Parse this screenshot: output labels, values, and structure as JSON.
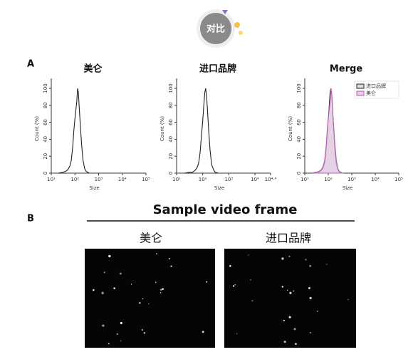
{
  "header": {
    "badge": "对比"
  },
  "panel_labels": [
    "A",
    "B"
  ],
  "video": {
    "title": "Sample video frame",
    "left": "美仑",
    "right": "进口品牌"
  },
  "chart_data": [
    {
      "type": "line",
      "title": "美仑",
      "xlabel": "Size",
      "ylabel": "Count (%)",
      "log_x": true,
      "x": [
        20,
        30,
        40,
        50,
        60,
        70,
        80,
        90,
        100,
        110,
        120,
        130,
        140,
        150,
        170,
        190,
        220,
        260,
        300,
        400
      ],
      "series": [
        {
          "name": "美仑",
          "color": "#222222",
          "values": [
            0,
            1,
            2,
            4,
            8,
            15,
            30,
            50,
            65,
            75,
            85,
            100,
            95,
            80,
            55,
            35,
            15,
            5,
            2,
            0
          ]
        }
      ],
      "xlim": [
        10,
        100000
      ],
      "ylim": [
        0,
        105
      ],
      "xticks": [
        {
          "value": 10,
          "label": "10¹"
        },
        {
          "value": 100,
          "label": "10²"
        },
        {
          "value": 1000,
          "label": "10³"
        },
        {
          "value": 10000,
          "label": "10⁴"
        },
        {
          "value": 100000,
          "label": "10⁵"
        }
      ],
      "yticks": [
        0,
        20,
        40,
        60,
        80,
        100
      ]
    },
    {
      "type": "line",
      "title": "进口品牌",
      "xlabel": "Size",
      "ylabel": "Count (%)",
      "log_x": true,
      "x": [
        20,
        30,
        40,
        50,
        60,
        70,
        80,
        90,
        100,
        110,
        120,
        130,
        140,
        150,
        170,
        190,
        220,
        260,
        300,
        400
      ],
      "series": [
        {
          "name": "进口品牌",
          "color": "#222222",
          "values": [
            0,
            1,
            1,
            3,
            6,
            12,
            25,
            45,
            62,
            80,
            95,
            100,
            92,
            78,
            50,
            28,
            10,
            4,
            1,
            0
          ]
        }
      ],
      "xlim": [
        10,
        39810.7
      ],
      "ylim": [
        0,
        105
      ],
      "xticks": [
        {
          "value": 10,
          "label": "10¹"
        },
        {
          "value": 100,
          "label": "10²"
        },
        {
          "value": 1000,
          "label": "10³"
        },
        {
          "value": 10000,
          "label": "10⁴"
        },
        {
          "value": 39810.7,
          "label": "10⁴·⁶"
        }
      ],
      "yticks": [
        0,
        20,
        40,
        60,
        80,
        100
      ]
    },
    {
      "type": "line",
      "title": "Merge",
      "xlabel": "Size",
      "ylabel": "Count (%)",
      "log_x": true,
      "legend": "upper right",
      "x": [
        20,
        30,
        40,
        50,
        60,
        70,
        80,
        90,
        100,
        110,
        120,
        130,
        140,
        150,
        170,
        190,
        220,
        260,
        300,
        400
      ],
      "series": [
        {
          "name": "进口品牌",
          "color": "#222222",
          "fill": "#d9d9d9",
          "values": [
            0,
            1,
            1,
            3,
            6,
            12,
            25,
            45,
            62,
            80,
            95,
            100,
            92,
            78,
            50,
            28,
            10,
            4,
            1,
            0
          ]
        },
        {
          "name": "美仑",
          "color": "#b060b0",
          "fill": "#e6cde6",
          "values": [
            0,
            1,
            2,
            4,
            8,
            15,
            30,
            50,
            65,
            75,
            85,
            100,
            95,
            80,
            55,
            35,
            15,
            5,
            2,
            0
          ]
        }
      ],
      "xlim": [
        10,
        100000
      ],
      "ylim": [
        0,
        105
      ],
      "xticks": [
        {
          "value": 10,
          "label": "10¹"
        },
        {
          "value": 100,
          "label": "10²"
        },
        {
          "value": 1000,
          "label": "10³"
        },
        {
          "value": 10000,
          "label": "10⁴"
        },
        {
          "value": 100000,
          "label": "10⁵"
        }
      ],
      "yticks": [
        0,
        20,
        40,
        60,
        80,
        100
      ]
    }
  ]
}
